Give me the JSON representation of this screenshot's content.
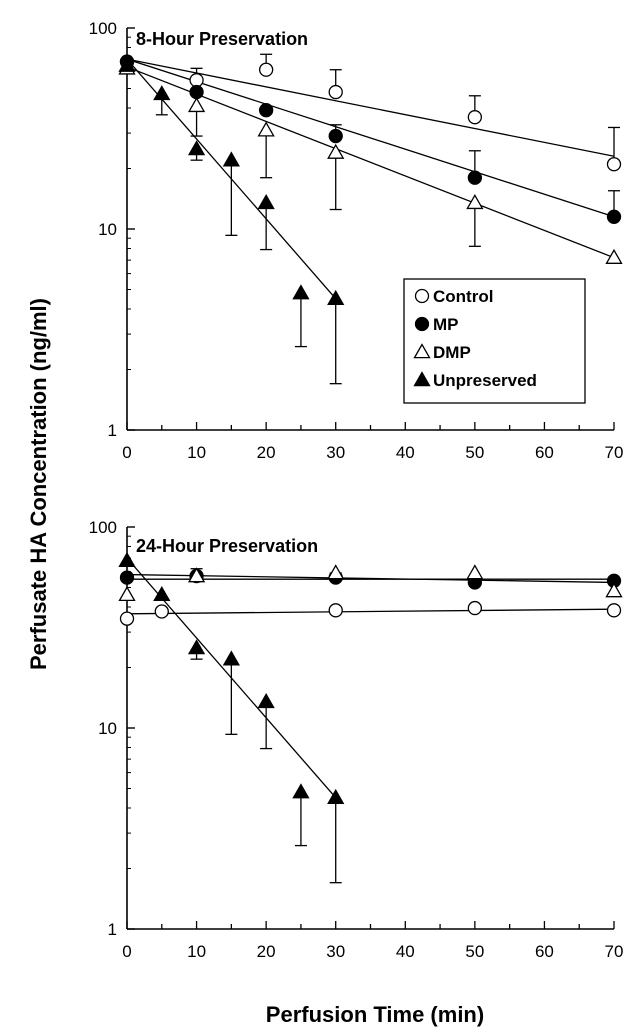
{
  "figure": {
    "ylabel": "Perfusate HA Concentration (ng/ml)",
    "xlabel": "Perfusion Time (min)"
  },
  "legend": {
    "placement": "bottom-right of top panel",
    "entries": [
      {
        "key": "control",
        "label": "Control",
        "marker": "circle",
        "filled": false
      },
      {
        "key": "mp",
        "label": "MP",
        "marker": "circle",
        "filled": true
      },
      {
        "key": "dmp",
        "label": "DMP",
        "marker": "triangle",
        "filled": false
      },
      {
        "key": "unpreserved",
        "label": "Unpreserved",
        "marker": "triangle",
        "filled": true
      }
    ]
  },
  "chart_data": [
    {
      "type": "scatter",
      "title": "8-Hour Preservation",
      "xlim": [
        0,
        70
      ],
      "ylim": [
        1,
        100
      ],
      "yscale": "log",
      "xticks": [
        "0",
        "10",
        "20",
        "30",
        "40",
        "50",
        "60",
        "70"
      ],
      "yticks": [
        "1",
        "10",
        "100"
      ],
      "series": [
        {
          "key": "control",
          "name": "Control",
          "x": [
            0,
            10,
            20,
            30,
            50,
            70
          ],
          "y": [
            68,
            55,
            62,
            48,
            36,
            21
          ],
          "err_up": [
            0,
            8,
            12,
            14,
            10,
            11
          ],
          "err_down": [
            0,
            0,
            0,
            0,
            0,
            0
          ],
          "fit": [
            [
              0,
              70
            ],
            [
              70,
              23
            ]
          ]
        },
        {
          "key": "mp",
          "name": "MP",
          "x": [
            0,
            10,
            20,
            30,
            50,
            70
          ],
          "y": [
            68,
            48,
            39,
            29,
            18,
            11.5
          ],
          "err_up": [
            0,
            0,
            0,
            4,
            6.5,
            4
          ],
          "err_down": [
            0,
            0,
            0,
            0,
            0,
            0
          ],
          "fit": [
            [
              0,
              70
            ],
            [
              70,
              11.5
            ]
          ]
        },
        {
          "key": "dmp",
          "name": "DMP",
          "x": [
            0,
            10,
            20,
            30,
            50,
            70
          ],
          "y": [
            63,
            41,
            31,
            24,
            13.5,
            7.2
          ],
          "err_up": [
            0,
            0,
            0,
            0,
            0,
            0
          ],
          "err_down": [
            0,
            12,
            13,
            11.5,
            5.3,
            0
          ],
          "fit": [
            [
              0,
              64
            ],
            [
              70,
              7.2
            ]
          ]
        },
        {
          "key": "unpreserved",
          "name": "Unpreserved",
          "x": [
            0,
            5,
            10,
            15,
            20,
            25,
            30
          ],
          "y": [
            65,
            47,
            25,
            22,
            13.5,
            4.8,
            4.5
          ],
          "err_up": [
            0,
            0,
            0,
            0,
            0,
            0,
            0
          ],
          "err_down": [
            0,
            10,
            3,
            12.7,
            5.6,
            2.2,
            2.8
          ],
          "fit": [
            [
              0,
              70
            ],
            [
              30,
              4.5
            ]
          ]
        }
      ]
    },
    {
      "type": "scatter",
      "title": "24-Hour Preservation",
      "xlim": [
        0,
        70
      ],
      "ylim": [
        1,
        100
      ],
      "yscale": "log",
      "xticks": [
        "0",
        "10",
        "20",
        "30",
        "40",
        "50",
        "60",
        "70"
      ],
      "yticks": [
        "1",
        "10",
        "100"
      ],
      "series": [
        {
          "key": "control",
          "name": "Control",
          "x": [
            0,
            5,
            30,
            50,
            70
          ],
          "y": [
            35,
            38,
            38.5,
            39.5,
            38.5
          ],
          "err_up": [
            0,
            0,
            0,
            0,
            0
          ],
          "err_down": [
            0,
            0,
            0,
            0,
            0
          ],
          "fit": [
            [
              0,
              37
            ],
            [
              70,
              39
            ]
          ]
        },
        {
          "key": "mp",
          "name": "MP",
          "x": [
            0,
            10,
            30,
            50,
            70
          ],
          "y": [
            56,
            57,
            56,
            53,
            54
          ],
          "err_up": [
            0,
            5,
            3,
            0,
            0
          ],
          "err_down": [
            0,
            0,
            0,
            0,
            0
          ],
          "fit": [
            [
              0,
              58
            ],
            [
              70,
              53
            ]
          ]
        },
        {
          "key": "dmp",
          "name": "DMP",
          "x": [
            0,
            10,
            30,
            50,
            70
          ],
          "y": [
            46,
            57,
            59,
            59,
            48
          ],
          "err_up": [
            0,
            0,
            0,
            0,
            0
          ],
          "err_down": [
            0,
            0,
            0,
            0,
            0
          ],
          "fit": [
            [
              0,
              55
            ],
            [
              70,
              55
            ]
          ]
        },
        {
          "key": "unpreserved",
          "name": "Unpreserved",
          "x": [
            0,
            5,
            10,
            15,
            20,
            25,
            30
          ],
          "y": [
            68,
            46,
            25,
            22,
            13.5,
            4.8,
            4.5
          ],
          "err_up": [
            0,
            0,
            0,
            0,
            0,
            0,
            0
          ],
          "err_down": [
            0,
            0,
            3,
            12.7,
            5.6,
            2.2,
            2.8
          ],
          "fit": [
            [
              0,
              70
            ],
            [
              30,
              4.5
            ]
          ]
        }
      ]
    }
  ]
}
